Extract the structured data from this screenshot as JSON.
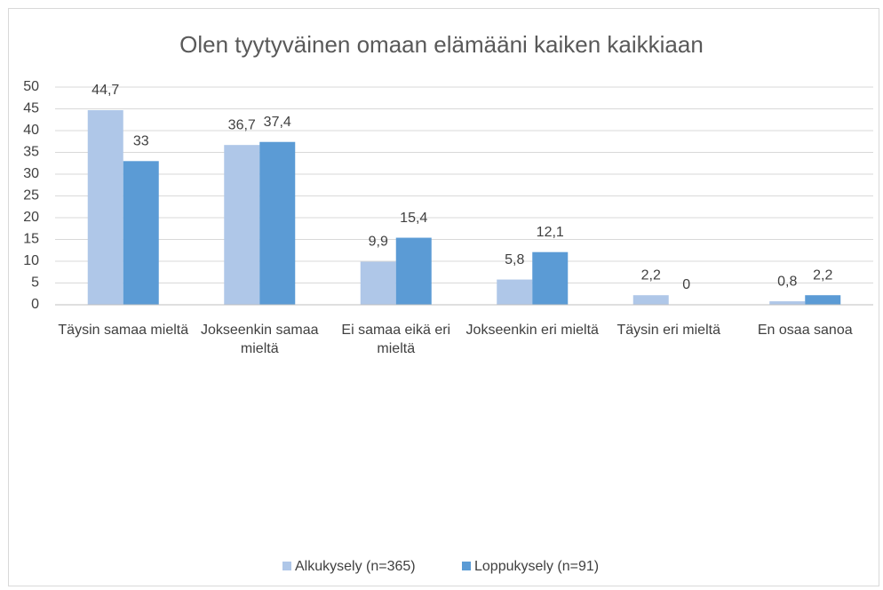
{
  "chart_data": {
    "type": "bar",
    "title": "Olen tyytyväinen omaan elämääni kaiken kaikkiaan",
    "categories": [
      "Täysin samaa mieltä",
      "Jokseenkin samaa mieltä",
      "Ei samaa eikä eri mieltä",
      "Jokseenkin eri mieltä",
      "Täysin eri mieltä",
      "En osaa sanoa"
    ],
    "series": [
      {
        "name": "Alkukysely (n=365)",
        "color": "#afc7e8",
        "values": [
          44.7,
          36.7,
          9.9,
          5.8,
          2.2,
          0.8
        ],
        "value_labels": [
          "44,7",
          "36,7",
          "9,9",
          "5,8",
          "2,2",
          "0,8"
        ]
      },
      {
        "name": "Loppukysely (n=91)",
        "color": "#5b9bd5",
        "values": [
          33,
          37.4,
          15.4,
          12.1,
          0,
          2.2
        ],
        "value_labels": [
          "33",
          "37,4",
          "15,4",
          "12,1",
          "0",
          "2,2"
        ]
      }
    ],
    "ylim": [
      0,
      50
    ],
    "yticks": [
      0,
      5,
      10,
      15,
      20,
      25,
      30,
      35,
      40,
      45,
      50
    ],
    "grid": true,
    "legend": "bottom"
  }
}
